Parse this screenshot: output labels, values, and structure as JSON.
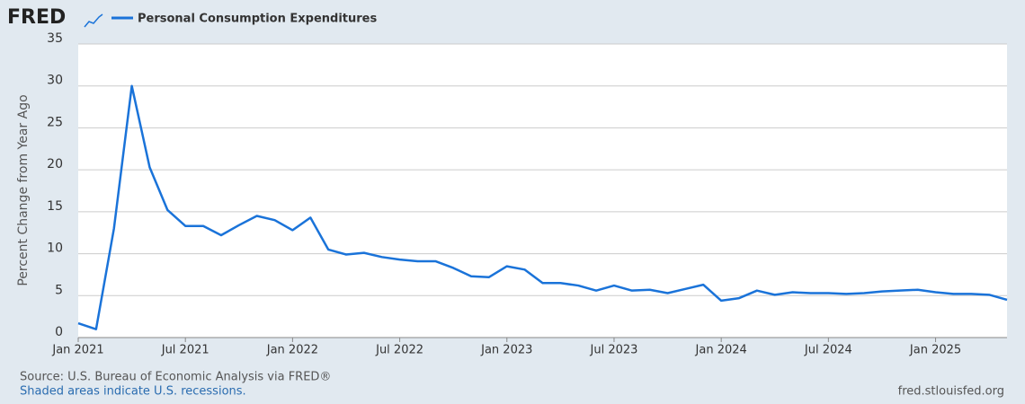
{
  "logo": "FRED",
  "chart_data": {
    "type": "line",
    "y_label": "Percent Change from Year Ago",
    "x": [
      "2021-01",
      "2021-02",
      "2021-03",
      "2021-04",
      "2021-05",
      "2021-06",
      "2021-07",
      "2021-08",
      "2021-09",
      "2021-10",
      "2021-11",
      "2021-12",
      "2022-01",
      "2022-02",
      "2022-03",
      "2022-04",
      "2022-05",
      "2022-06",
      "2022-07",
      "2022-08",
      "2022-09",
      "2022-10",
      "2022-11",
      "2022-12",
      "2023-01",
      "2023-02",
      "2023-03",
      "2023-04",
      "2023-05",
      "2023-06",
      "2023-07",
      "2023-08",
      "2023-09",
      "2023-10",
      "2023-11",
      "2023-12",
      "2024-01",
      "2024-02",
      "2024-03",
      "2024-04",
      "2024-05",
      "2024-06",
      "2024-07",
      "2024-08",
      "2024-09",
      "2024-10",
      "2024-11",
      "2024-12",
      "2025-01",
      "2025-02",
      "2025-03",
      "2025-04",
      "2025-05"
    ],
    "series": [
      {
        "name": "Personal Consumption Expenditures",
        "color": "#1a73d9",
        "values": [
          1.7,
          1.0,
          13.0,
          30.0,
          20.3,
          15.2,
          13.3,
          13.3,
          12.2,
          13.4,
          14.5,
          14.0,
          12.8,
          14.3,
          10.5,
          9.9,
          10.1,
          9.6,
          9.3,
          9.1,
          9.1,
          8.3,
          7.3,
          7.2,
          8.5,
          8.1,
          6.5,
          6.5,
          6.2,
          5.6,
          6.2,
          5.6,
          5.7,
          5.3,
          5.8,
          6.3,
          4.4,
          4.7,
          5.6,
          5.1,
          5.4,
          5.3,
          5.3,
          5.2,
          5.3,
          5.5,
          5.6,
          5.7,
          5.4,
          5.2,
          5.2,
          5.1,
          4.5
        ]
      }
    ],
    "xlim": [
      "2021-01",
      "2025-05"
    ],
    "xticks": [
      {
        "value": "2021-01",
        "label": "Jan 2021"
      },
      {
        "value": "2021-07",
        "label": "Jul 2021"
      },
      {
        "value": "2022-01",
        "label": "Jan 2022"
      },
      {
        "value": "2022-07",
        "label": "Jul 2022"
      },
      {
        "value": "2023-01",
        "label": "Jan 2023"
      },
      {
        "value": "2023-07",
        "label": "Jul 2023"
      },
      {
        "value": "2024-01",
        "label": "Jan 2024"
      },
      {
        "value": "2024-07",
        "label": "Jul 2024"
      },
      {
        "value": "2025-01",
        "label": "Jan 2025"
      }
    ],
    "ylim": [
      0,
      35
    ],
    "yticks": [
      0,
      5,
      10,
      15,
      20,
      25,
      30,
      35
    ],
    "grid": true,
    "source": "Source: U.S. Bureau of Economic Analysis via FRED®",
    "note": "Shaded areas indicate U.S. recessions.",
    "site": "fred.stlouisfed.org"
  }
}
